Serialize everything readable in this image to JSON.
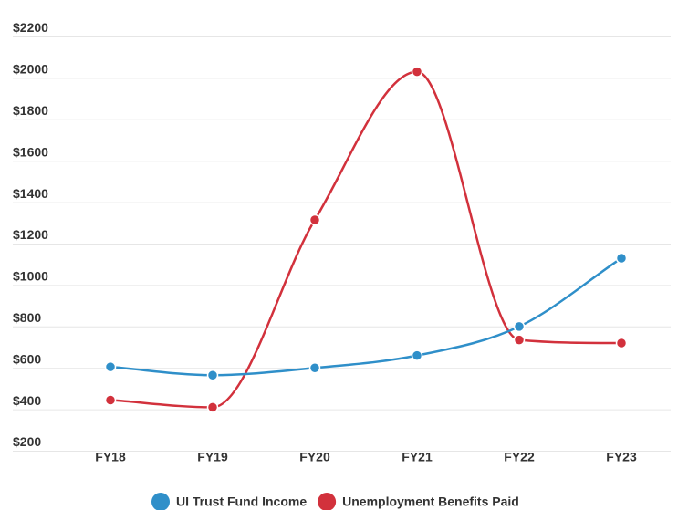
{
  "chart_data": {
    "type": "line",
    "categories": [
      "FY18",
      "FY19",
      "FY20",
      "FY21",
      "FY22",
      "FY23"
    ],
    "series": [
      {
        "name": "UI Trust Fund Income",
        "color": "#2f8fc9",
        "values": [
          565,
          525,
          560,
          620,
          760,
          1090
        ]
      },
      {
        "name": "Unemployment Benefits Paid",
        "color": "#d2313c",
        "values": [
          405,
          370,
          1275,
          1990,
          695,
          680
        ]
      }
    ],
    "y_ticks": [
      "$2200",
      "$2000",
      "$1800",
      "$1600",
      "$1400",
      "$1200",
      "$1000",
      "$800",
      "$600",
      "$400",
      "$200"
    ],
    "ylim": [
      200,
      2200
    ],
    "grid": true,
    "legend_position": "bottom-center",
    "title": "",
    "xlabel": "",
    "ylabel": ""
  }
}
